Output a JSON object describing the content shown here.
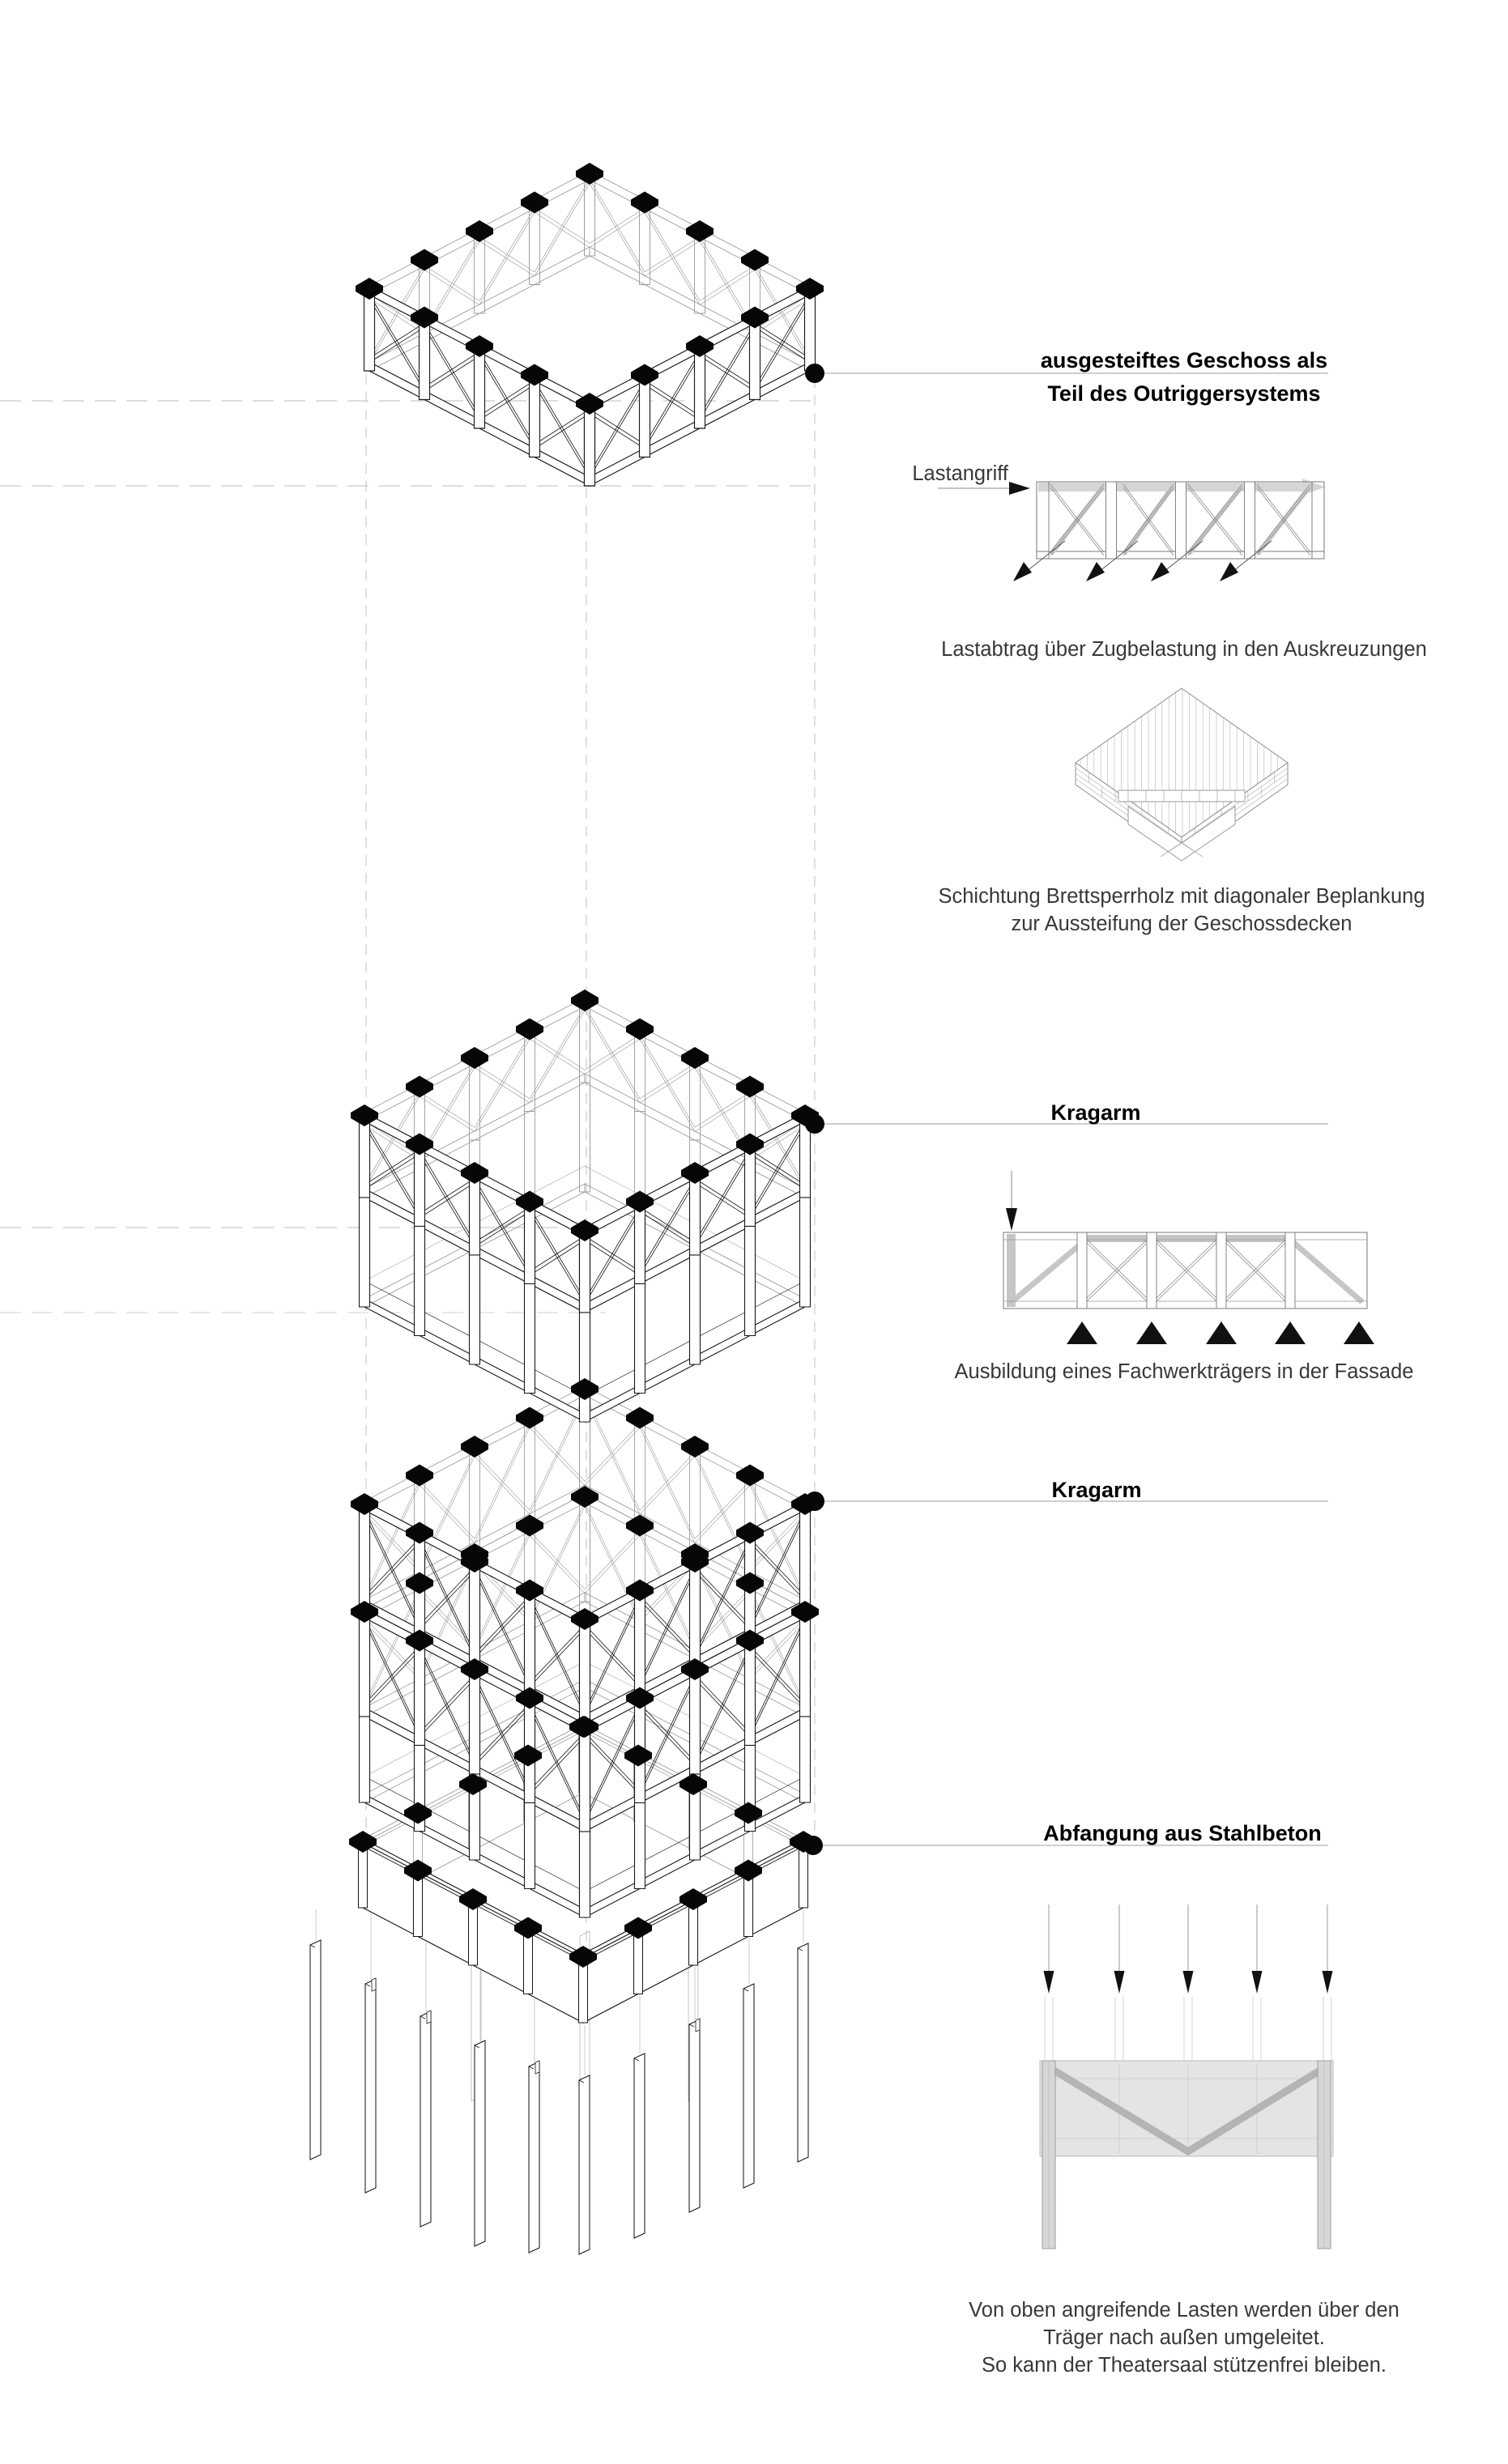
{
  "page": {
    "background": "#ffffff",
    "kind": "exploded axonometric structural concept diagram"
  },
  "colors": {
    "line_front": "#1a1a1a",
    "line_back": "#979797",
    "guide_dash": "#c9c9c9",
    "leader": "#9c9c9c",
    "gray_fill": "#d5d5d5",
    "beam_fill": "#e4e4e4",
    "text": "#383838"
  },
  "annotations": {
    "outrigger_line1": "ausgesteiftes Geschoss als",
    "outrigger_line2": "Teil des Outriggersystems",
    "lastangriff": "Lastangriff",
    "caption_truss": "Lastabtrag über Zugbelastung in den Auskreuzungen",
    "caption_clt_line1": "Schichtung Brettsperrholz mit diagonaler Beplankung",
    "caption_clt_line2": "zur Aussteifung der Geschossdecken",
    "kragarm_upper": "Kragarm",
    "caption_fachwerk": "Ausbildung eines Fachwerkträgers in der Fassade",
    "kragarm_lower": "Kragarm",
    "abfangung": "Abfangung aus Stahlbeton",
    "caption_lasten_line1": "Von oben angreifende Lasten werden über den",
    "caption_lasten_line2": "Träger nach außen umgeleitet.",
    "caption_lasten_line3": "So kann der Theatersaal stützenfrei bleiben."
  },
  "figure": {
    "modules": [
      {
        "name": "outrigger-storey",
        "label": "ausgesteiftes Geschoss als Teil des Outriggersystems"
      },
      {
        "name": "kragarm-upper",
        "label": "Kragarm"
      },
      {
        "name": "kragarm-lower",
        "label": "Kragarm"
      },
      {
        "name": "concrete-base",
        "label": "Abfangung aus Stahlbeton"
      }
    ],
    "side_diagrams": [
      {
        "name": "truss-elevation",
        "caption": "Lastabtrag über Zugbelastung in den Auskreuzungen"
      },
      {
        "name": "clt-slab",
        "caption": "Schichtung Brettsperrholz mit diagonaler Beplankung zur Aussteifung der Geschossdecken"
      },
      {
        "name": "facade-truss",
        "caption": "Ausbildung eines Fachwerkträgers in der Fassade"
      },
      {
        "name": "concrete-beam",
        "caption": "Von oben angreifende Lasten werden über den Träger nach außen umgeleitet. So kann der Theatersaal stützenfrei bleiben."
      }
    ]
  }
}
